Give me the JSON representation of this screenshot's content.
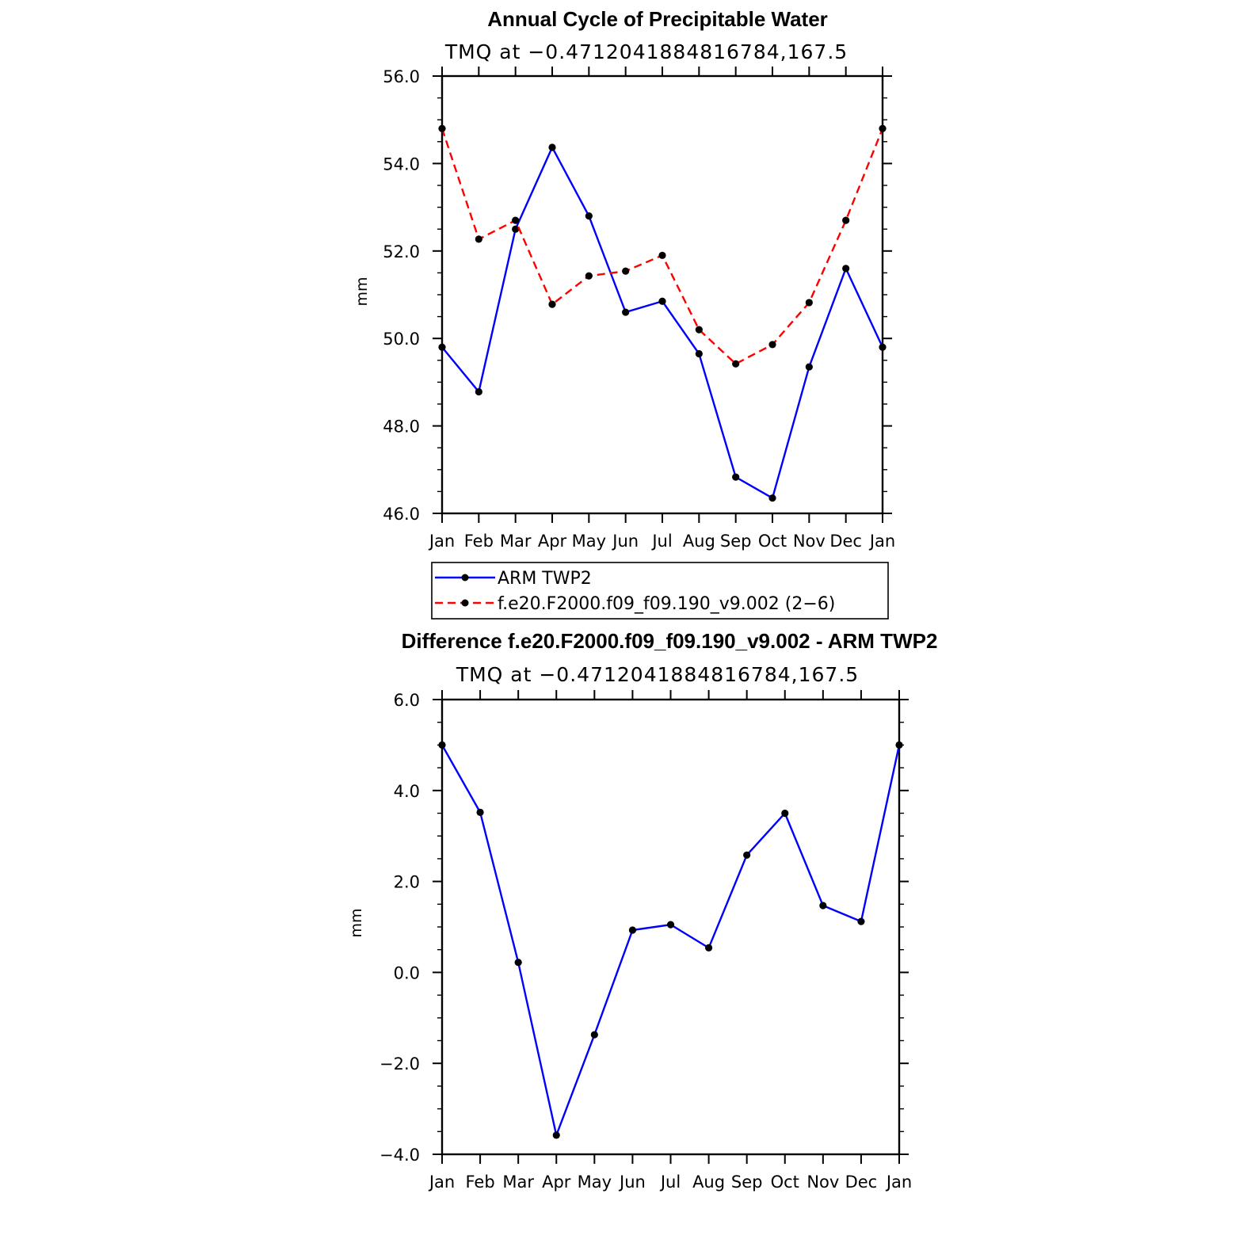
{
  "chart_data": [
    {
      "type": "line",
      "title": "Annual Cycle of Precipitable Water",
      "subtitle": "TMQ at −0.4712041884816784,167.5",
      "ylabel": "mm",
      "categories": [
        "Jan",
        "Feb",
        "Mar",
        "Apr",
        "May",
        "Jun",
        "Jul",
        "Aug",
        "Sep",
        "Oct",
        "Nov",
        "Dec",
        "Jan"
      ],
      "ylim": [
        46.0,
        56.0
      ],
      "yticks": [
        "46.0",
        "48.0",
        "50.0",
        "52.0",
        "54.0",
        "56.0"
      ],
      "series": [
        {
          "name": "ARM TWP2",
          "color": "#0000ff",
          "dash": "solid",
          "values": [
            49.8,
            48.78,
            52.5,
            54.37,
            52.8,
            50.6,
            50.85,
            49.65,
            46.83,
            46.35,
            49.35,
            51.6,
            49.8
          ]
        },
        {
          "name": "f.e20.F2000.f09_f09.190_v9.002 (2−6)",
          "color": "#ff0000",
          "dash": "dashed",
          "values": [
            54.8,
            52.27,
            52.7,
            50.78,
            51.43,
            51.54,
            51.9,
            50.2,
            49.42,
            49.86,
            50.82,
            52.7,
            54.8
          ]
        }
      ],
      "legend": "bottom"
    },
    {
      "type": "line",
      "title": "Difference f.e20.F2000.f09_f09.190_v9.002 - ARM TWP2",
      "subtitle": "TMQ at −0.4712041884816784,167.5",
      "ylabel": "mm",
      "categories": [
        "Jan",
        "Feb",
        "Mar",
        "Apr",
        "May",
        "Jun",
        "Jul",
        "Aug",
        "Sep",
        "Oct",
        "Nov",
        "Dec",
        "Jan"
      ],
      "ylim": [
        -4.0,
        6.0
      ],
      "yticks": [
        "−4.0",
        "−2.0",
        "0.0",
        "2.0",
        "4.0",
        "6.0"
      ],
      "series": [
        {
          "color": "#0000ff",
          "dash": "solid",
          "values": [
            5.0,
            3.52,
            0.22,
            -3.58,
            -1.37,
            0.93,
            1.05,
            0.54,
            2.58,
            3.5,
            1.47,
            1.12,
            5.0
          ]
        }
      ]
    }
  ]
}
